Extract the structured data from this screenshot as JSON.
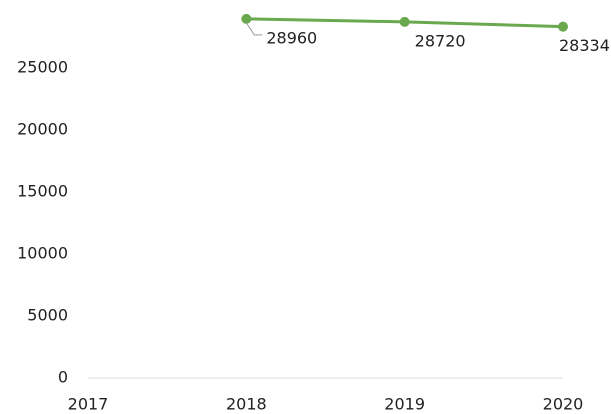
{
  "chart_data": {
    "type": "line",
    "categories": [
      "2017",
      "2018",
      "2019",
      "2020"
    ],
    "series": [
      {
        "color": "#6aa84f",
        "values": [
          null,
          28960,
          28720,
          28334
        ]
      }
    ],
    "ylim": [
      0,
      30000
    ],
    "yticks": [
      0,
      5000,
      10000,
      15000,
      20000,
      25000
    ],
    "grid": false
  }
}
